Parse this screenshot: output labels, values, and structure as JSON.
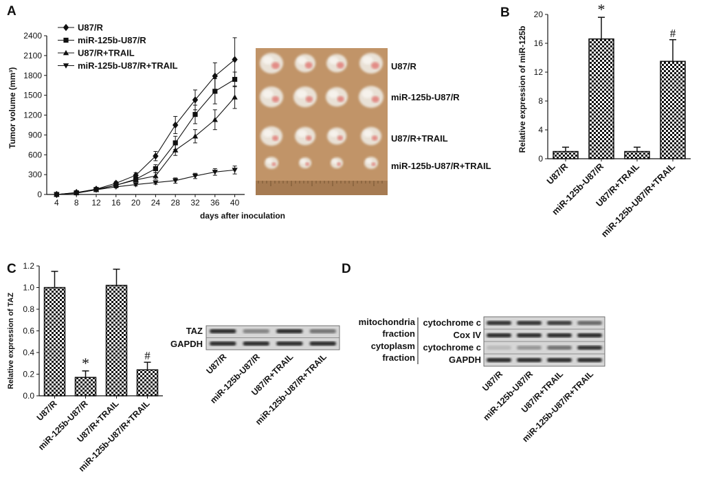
{
  "panel_labels": {
    "a": "A",
    "b": "B",
    "c": "C",
    "d": "D"
  },
  "chart_data": [
    {
      "type": "line",
      "panel": "A",
      "title": "",
      "xlabel": "days after inoculation",
      "ylabel": "Tumor volume (mm³)",
      "x": [
        4,
        8,
        12,
        16,
        20,
        24,
        28,
        32,
        36,
        40
      ],
      "xlim": [
        2,
        42
      ],
      "ylim": [
        0,
        2400
      ],
      "yticks": [
        0,
        300,
        600,
        900,
        1200,
        1500,
        1800,
        2100,
        2400
      ],
      "legend_position": "top-left",
      "series": [
        {
          "name": "U87/R",
          "marker": "diamond",
          "values": [
            0,
            30,
            80,
            170,
            290,
            580,
            1050,
            1430,
            1790,
            2040
          ],
          "errors": [
            0,
            10,
            15,
            25,
            40,
            70,
            130,
            150,
            200,
            330
          ]
        },
        {
          "name": "miR-125b-U87/R",
          "marker": "square",
          "values": [
            0,
            25,
            75,
            140,
            230,
            390,
            780,
            1210,
            1560,
            1740
          ],
          "errors": [
            0,
            10,
            15,
            20,
            35,
            60,
            100,
            140,
            190,
            110
          ]
        },
        {
          "name": "U87/R+TRAIL",
          "marker": "triangle-up",
          "values": [
            0,
            25,
            70,
            140,
            220,
            280,
            670,
            880,
            1130,
            1470
          ],
          "errors": [
            0,
            10,
            15,
            20,
            30,
            50,
            80,
            100,
            150,
            170
          ]
        },
        {
          "name": "miR-125b-U87/R+TRAIL",
          "marker": "triangle-down",
          "values": [
            0,
            20,
            70,
            115,
            150,
            180,
            210,
            280,
            340,
            370
          ],
          "errors": [
            0,
            8,
            10,
            15,
            20,
            25,
            40,
            40,
            50,
            60
          ]
        }
      ]
    },
    {
      "type": "bar",
      "panel": "B",
      "ylabel": "Relative expression of miR-125b",
      "categories": [
        "U87/R",
        "miR-125b-U87/R",
        "U87/R+TRAIL",
        "miR-125b-U87/R+TRAIL"
      ],
      "values": [
        1.0,
        16.6,
        1.0,
        13.5
      ],
      "errors": [
        0.6,
        3.0,
        0.6,
        3.0
      ],
      "annotations": [
        "",
        "*",
        "",
        "#"
      ],
      "ylim": [
        0,
        20
      ],
      "yticks": [
        0,
        4,
        8,
        12,
        16,
        20
      ]
    },
    {
      "type": "bar",
      "panel": "C",
      "ylabel": "Relative expression of TAZ",
      "categories": [
        "U87/R",
        "miR-125b-U87/R",
        "U87/R+TRAIL",
        "miR-125b-U87/R+TRAIL"
      ],
      "values": [
        1.0,
        0.17,
        1.02,
        0.24
      ],
      "errors": [
        0.15,
        0.06,
        0.15,
        0.07
      ],
      "annotations": [
        "",
        "*",
        "",
        "#"
      ],
      "ylim": [
        0,
        1.2
      ],
      "yticks": [
        "0.0",
        "0.2",
        "0.4",
        "0.6",
        "0.8",
        "1.0",
        "1.2"
      ]
    }
  ],
  "photo": {
    "row_labels": [
      "U87/R",
      "miR-125b-U87/R",
      "U87/R+TRAIL",
      "miR-125b-U87/R+TRAIL"
    ]
  },
  "blot_c": {
    "row_labels": [
      "TAZ",
      "GAPDH"
    ],
    "lane_labels": [
      "U87/R",
      "miR-125b-U87/R",
      "U87/R+TRAIL",
      "miR-125b-U87/R+TRAIL"
    ]
  },
  "blot_d": {
    "fraction_labels": [
      "mitochondria",
      "fraction",
      "cytoplasm",
      "fraction"
    ],
    "row_labels": [
      "cytochrome c",
      "Cox IV",
      "cytochrome c",
      "GAPDH"
    ],
    "lane_labels": [
      "U87/R",
      "miR-125b-U87/R",
      "U87/R+TRAIL",
      "miR-125b-U87/R+TRAIL"
    ]
  },
  "colors": {
    "ink": "#111111",
    "paper": "#ffffff",
    "tray": "#c69a6e",
    "blot_bg": "#d6d6d6",
    "band": "#2a2a2a"
  }
}
